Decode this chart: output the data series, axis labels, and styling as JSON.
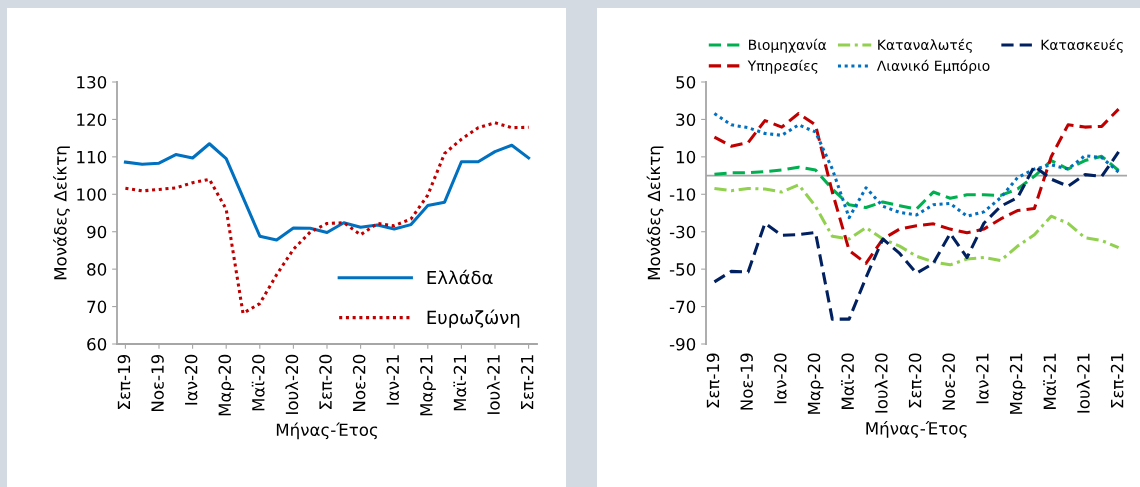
{
  "chart_data": [
    {
      "type": "line",
      "xlabel": "Μήνας-Έτος",
      "ylabel": "Μονάδες Δείκτη",
      "categories": [
        "Σεπ-19",
        null,
        "Νοε-19",
        null,
        "Ιαν-20",
        null,
        "Μαρ-20",
        null,
        "Μαϊ-20",
        null,
        "Ιουλ-20",
        null,
        "Σεπ-20",
        null,
        "Νοε-20",
        null,
        "Ιαν-21",
        null,
        "Μαρ-21",
        null,
        "Μαϊ-21",
        null,
        "Ιουλ-21",
        null,
        "Σεπ-21"
      ],
      "ylim": [
        60,
        130
      ],
      "yticks": [
        60,
        70,
        80,
        90,
        100,
        110,
        120,
        130
      ],
      "grid": false,
      "legend": "bottom right",
      "series": [
        {
          "name": "Ελλάδα",
          "color": "#0070c0",
          "line_style": "solid",
          "values": [
            108.6,
            108.0,
            108.3,
            110.6,
            109.7,
            113.5,
            109.5,
            99.2,
            88.8,
            87.8,
            91.0,
            90.9,
            89.8,
            92.4,
            91.2,
            91.8,
            90.7,
            91.9,
            97.0,
            97.9,
            108.7,
            108.7,
            111.4,
            113.1,
            109.7
          ]
        },
        {
          "name": "Ευρωζώνη",
          "color": "#c00000",
          "line_style": "dotted",
          "values": [
            101.6,
            100.9,
            101.3,
            101.7,
            103.1,
            104.0,
            96.0,
            68.2,
            70.8,
            78.5,
            85.3,
            89.9,
            92.2,
            92.4,
            89.2,
            92.2,
            91.6,
            93.4,
            99.8,
            110.9,
            114.7,
            117.8,
            119.1,
            117.8,
            117.9
          ]
        }
      ]
    },
    {
      "type": "line",
      "xlabel": "Μήνας-Έτος",
      "ylabel": "Μονάδες Δείκτη",
      "categories": [
        "Σεπ-19",
        null,
        "Νοε-19",
        null,
        "Ιαν-20",
        null,
        "Μαρ-20",
        null,
        "Μαϊ-20",
        null,
        "Ιουλ-20",
        null,
        "Σεπ-20",
        null,
        "Νοε-20",
        null,
        "Ιαν-21",
        null,
        "Μαρ-21",
        null,
        "Μαϊ-21",
        null,
        "Ιουλ-21",
        null,
        "Σεπ-21"
      ],
      "ylim": [
        -90,
        50
      ],
      "yticks": [
        -90,
        -70,
        -50,
        -30,
        -10,
        10,
        30,
        50
      ],
      "grid": false,
      "legend": "top",
      "ref_lines": [
        {
          "axis": "y",
          "value": 0,
          "color": "#a6a6a6"
        }
      ],
      "series": [
        {
          "name": "Βιομηχανία",
          "color": "#00b050",
          "line_style": "dashed",
          "values": [
            0.7,
            1.5,
            1.5,
            2.1,
            3.0,
            4.5,
            3.0,
            -7.2,
            -15.6,
            -17.1,
            -14.1,
            -16.1,
            -17.9,
            -8.8,
            -12.1,
            -10.3,
            -10.3,
            -10.6,
            -7.2,
            -0.4,
            8.0,
            3.5,
            8.0,
            10.3,
            2.7
          ]
        },
        {
          "name": "Υπηρεσίες",
          "color": "#c00000",
          "line_style": "dashed",
          "values": [
            20.5,
            15.7,
            17.6,
            29.4,
            25.9,
            33.2,
            27.1,
            -8.8,
            -40.0,
            -46.9,
            -33.9,
            -28.6,
            -26.8,
            -25.8,
            -28.6,
            -30.6,
            -28.6,
            -23.2,
            -18.7,
            -17.6,
            10.1,
            27.1,
            25.9,
            26.3,
            35.5
          ]
        },
        {
          "name": "Καταναλωτές",
          "color": "#92d050",
          "line_style": "dashdot",
          "values": [
            -6.9,
            -8.1,
            -6.9,
            -7.2,
            -8.8,
            -4.9,
            -16.4,
            -32.4,
            -33.9,
            -27.8,
            -33.9,
            -37.7,
            -43.1,
            -46.1,
            -47.7,
            -44.6,
            -43.8,
            -45.4,
            -37.7,
            -31.6,
            -21.7,
            -25.5,
            -33.2,
            -34.7,
            -38.5
          ]
        },
        {
          "name": "Λιανικό Εμπόριο",
          "color": "#0070c0",
          "line_style": "dotted",
          "values": [
            33.2,
            27.1,
            25.6,
            22.5,
            21.5,
            27.1,
            23.3,
            3.5,
            -22.5,
            -6.5,
            -16.4,
            -19.7,
            -21.0,
            -15.6,
            -14.9,
            -21.7,
            -19.4,
            -11.8,
            -1.1,
            3.5,
            5.7,
            3.5,
            10.6,
            9.6,
            1.9
          ]
        },
        {
          "name": "Κατασκευές",
          "color": "#002060",
          "line_style": "dashed",
          "values": [
            -56.8,
            -51.2,
            -51.5,
            -25.5,
            -31.9,
            -31.6,
            -30.4,
            -76.7,
            -76.7,
            -54.5,
            -33.9,
            -41.6,
            -52.2,
            -46.9,
            -30.9,
            -43.8,
            -25.5,
            -16.4,
            -11.8,
            5.0,
            -1.9,
            -5.7,
            0.5,
            -0.4,
            12.6
          ]
        }
      ]
    }
  ]
}
